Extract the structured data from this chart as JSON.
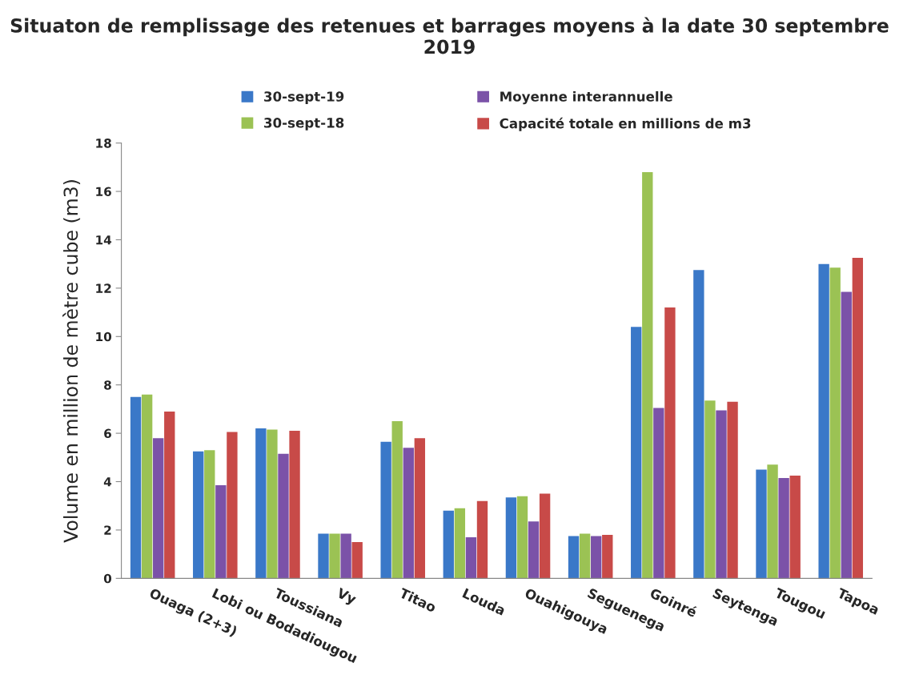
{
  "chart_data": {
    "type": "bar",
    "title": "Situaton de remplissage des retenues et barrages moyens à la date 30 septembre 2019",
    "ylabel": "Volume en million de mètre cube (m3)",
    "categories": [
      "Ouaga (2+3)",
      "Lobi ou Bodadiougou",
      "Toussiana",
      "Vy",
      "Titao",
      "Louda",
      "Ouahigouya",
      "Seguenega",
      "Goinré",
      "Seytenga",
      "Tougou",
      "Tapoa"
    ],
    "series": [
      {
        "name": "30-sept-19",
        "color": "#3a78c8",
        "values": [
          7.5,
          5.25,
          6.2,
          1.85,
          5.65,
          2.8,
          3.35,
          1.75,
          10.4,
          12.75,
          4.5,
          13.0
        ]
      },
      {
        "name": "30-sept-18",
        "color": "#9bc254",
        "values": [
          7.6,
          5.3,
          6.15,
          1.85,
          6.5,
          2.9,
          3.4,
          1.85,
          16.8,
          7.35,
          4.7,
          12.85
        ]
      },
      {
        "name": "Moyenne interannuelle",
        "color": "#7b52a8",
        "values": [
          5.8,
          3.85,
          5.15,
          1.85,
          5.4,
          1.7,
          2.35,
          1.75,
          7.05,
          6.95,
          4.15,
          11.85
        ]
      },
      {
        "name": "Capacité totale en millions de m3",
        "color": "#c84a48",
        "values": [
          6.9,
          6.05,
          6.1,
          1.5,
          5.8,
          3.2,
          3.5,
          1.8,
          11.2,
          7.3,
          4.25,
          13.25
        ]
      }
    ],
    "ylim": [
      0,
      18
    ],
    "yticks": [
      0,
      2,
      4,
      6,
      8,
      10,
      12,
      14,
      16,
      18
    ],
    "grid": false,
    "legend": "top"
  }
}
